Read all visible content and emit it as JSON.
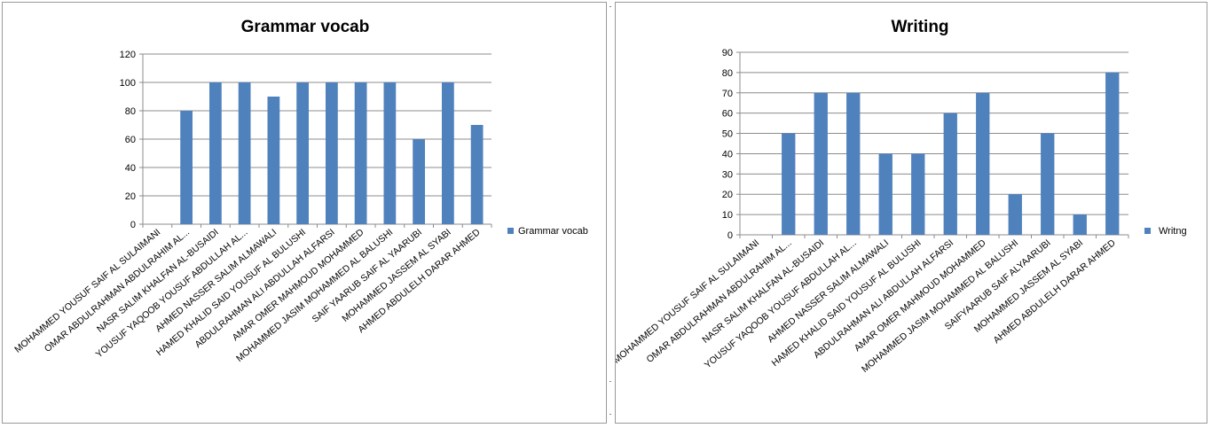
{
  "chart_data": [
    {
      "type": "bar",
      "title": "Grammar vocab",
      "categories": [
        "MOHAMMED YOUSUF SAIF  AL SULAIMANI",
        "OMAR ABDULRAHMAN ABDULRAHIM AL...",
        "NASR SALIM KHALFAN AL-BUSAIDI",
        "YOUSUF YAQOOB YOUSUF ABDULLAH AL...",
        "AHMED NASSER SALIM ALMAWALI",
        "HAMED KHALID SAID YOUSUF AL BULUSHI",
        "ABDULRAHMAN ALI ABDULLAH  ALFARSI",
        "AMAR OMER MAHMOUD MOHAMMED",
        "MOHAMMED JASIM MOHAMMED AL BALUSHI",
        "SAIF YAARUB SAIF AL YAARUBI",
        "MOHAMMED JASSEM AL SYABI",
        "AHMED ABDULELH DARAR AHMED"
      ],
      "series": [
        {
          "name": "Grammar vocab",
          "values": [
            0,
            80,
            100,
            100,
            90,
            100,
            100,
            100,
            100,
            60,
            100,
            70
          ]
        }
      ],
      "yticks": [
        "0",
        "20",
        "40",
        "60",
        "80",
        "100",
        "120"
      ],
      "ylim": [
        0,
        120
      ],
      "grid": true,
      "legend_position": "right",
      "color": "#4f81bd"
    },
    {
      "type": "bar",
      "title": "Writing",
      "categories": [
        "MOHAMMED YOUSUF SAIF  AL SULAIMANI",
        "OMAR ABDULRAHMAN ABDULRAHIM AL...",
        "NASR SALIM KHALFAN AL-BUSAIDI",
        "YOUSUF YAQOOB YOUSUF ABDULLAH AL...",
        "AHMED NASSER SALIM ALMAWALI",
        "HAMED KHALID SAID YOUSUF AL BULUSHI",
        "ABDULRAHMAN ALI ABDULLAH  ALFARSI",
        "AMAR OMER MAHMOUD MOHAMMED",
        "MOHAMMED JASIM MOHAMMED AL BALUSHI",
        "SAIFYAARUB SAIF ALYAARUBI",
        "MOHAMMED JASSEM AL SYABI",
        "AHMED ABDULELH DARAR AHMED"
      ],
      "series": [
        {
          "name": "Writng",
          "values": [
            0,
            50,
            70,
            70,
            40,
            40,
            60,
            70,
            20,
            50,
            10,
            80
          ]
        }
      ],
      "yticks": [
        "0",
        "10",
        "20",
        "30",
        "40",
        "50",
        "60",
        "70",
        "80",
        "90"
      ],
      "ylim": [
        0,
        90
      ],
      "grid": true,
      "legend_position": "right",
      "color": "#4f81bd"
    }
  ]
}
